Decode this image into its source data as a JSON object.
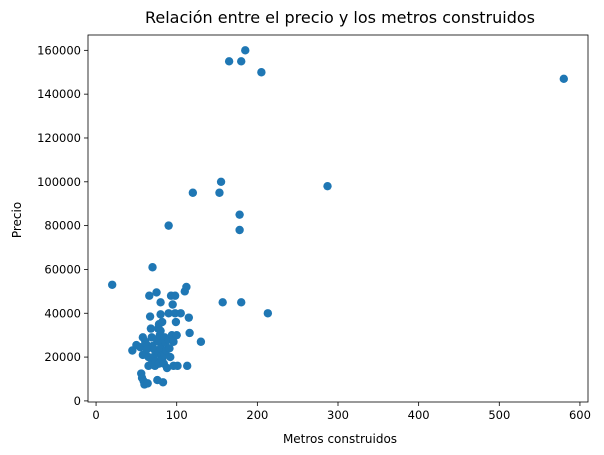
{
  "chart_data": {
    "type": "scatter",
    "title": "Relación entre el precio y los metros construidos",
    "xlabel": "Metros construidos",
    "ylabel": "Precio",
    "xlim": [
      -10,
      610
    ],
    "ylim": [
      -500,
      167000
    ],
    "xticks": [
      0,
      100,
      200,
      300,
      400,
      500,
      600
    ],
    "yticks": [
      0,
      20000,
      40000,
      60000,
      80000,
      100000,
      120000,
      140000,
      160000
    ],
    "grid": false,
    "marker_color": "#1f77b4",
    "points": [
      [
        20,
        53000
      ],
      [
        45,
        23000
      ],
      [
        50,
        25500
      ],
      [
        55,
        24500
      ],
      [
        56,
        12500
      ],
      [
        57,
        10500
      ],
      [
        58,
        29000
      ],
      [
        58,
        21000
      ],
      [
        59,
        9000
      ],
      [
        60,
        7500
      ],
      [
        61,
        27000
      ],
      [
        62,
        26000
      ],
      [
        63,
        23500
      ],
      [
        64,
        8000
      ],
      [
        65,
        20000
      ],
      [
        65,
        16000
      ],
      [
        66,
        48000
      ],
      [
        67,
        38500
      ],
      [
        68,
        33000
      ],
      [
        69,
        29000
      ],
      [
        69,
        17000
      ],
      [
        70,
        61000
      ],
      [
        70,
        25000
      ],
      [
        71,
        20000
      ],
      [
        72,
        23500
      ],
      [
        73,
        16000
      ],
      [
        74,
        18000
      ],
      [
        75,
        49500
      ],
      [
        75,
        28000
      ],
      [
        76,
        9500
      ],
      [
        77,
        33000
      ],
      [
        77,
        22000
      ],
      [
        78,
        35000
      ],
      [
        78,
        27000
      ],
      [
        78,
        17000
      ],
      [
        79,
        30000
      ],
      [
        80,
        45000
      ],
      [
        80,
        39500
      ],
      [
        80,
        32000
      ],
      [
        80,
        24000
      ],
      [
        81,
        20500
      ],
      [
        82,
        36000
      ],
      [
        82,
        19000
      ],
      [
        83,
        8500
      ],
      [
        84,
        17000
      ],
      [
        85,
        29000
      ],
      [
        85,
        21000
      ],
      [
        86,
        26500
      ],
      [
        87,
        23000
      ],
      [
        88,
        15000
      ],
      [
        90,
        80000
      ],
      [
        90,
        40000
      ],
      [
        90,
        28000
      ],
      [
        91,
        24000
      ],
      [
        92,
        20000
      ],
      [
        93,
        48000
      ],
      [
        94,
        30000
      ],
      [
        95,
        44000
      ],
      [
        96,
        27000
      ],
      [
        96,
        16000
      ],
      [
        98,
        48000
      ],
      [
        98,
        40000
      ],
      [
        99,
        36000
      ],
      [
        100,
        30000
      ],
      [
        101,
        16000
      ],
      [
        105,
        40000
      ],
      [
        110,
        50000
      ],
      [
        112,
        52000
      ],
      [
        113,
        16000
      ],
      [
        115,
        38000
      ],
      [
        116,
        31000
      ],
      [
        120,
        95000
      ],
      [
        130,
        27000
      ],
      [
        153,
        95000
      ],
      [
        155,
        100000
      ],
      [
        157,
        45000
      ],
      [
        165,
        155000
      ],
      [
        178,
        85000
      ],
      [
        178,
        78000
      ],
      [
        180,
        155000
      ],
      [
        180,
        45000
      ],
      [
        185,
        160000
      ],
      [
        205,
        150000
      ],
      [
        213,
        40000
      ],
      [
        287,
        98000
      ],
      [
        580,
        147000
      ]
    ]
  }
}
